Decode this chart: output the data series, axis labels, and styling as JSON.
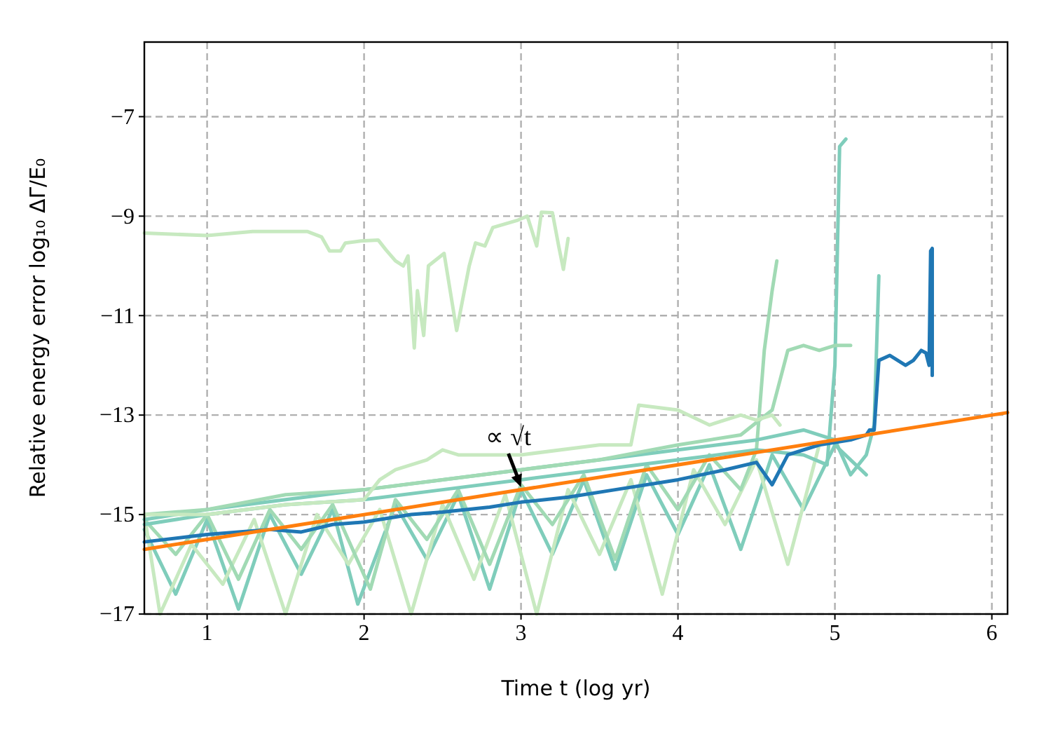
{
  "chart_data": {
    "type": "line",
    "xlabel": "Time t (log yr)",
    "ylabel": "Relative energy error log₁₀ ΔΓ/E₀",
    "xlim": [
      0.6,
      6.1
    ],
    "ylim": [
      -17,
      -5.5
    ],
    "xticks": [
      1,
      2,
      3,
      4,
      5,
      6
    ],
    "yticks": [
      {
        "value": -17,
        "label": "−17"
      },
      {
        "value": -15,
        "label": "−15"
      },
      {
        "value": -13,
        "label": "−13"
      },
      {
        "value": -11,
        "label": "−11"
      },
      {
        "value": -9,
        "label": "−9"
      },
      {
        "value": -7,
        "label": "−7"
      }
    ],
    "grid": true,
    "line_style": "solid",
    "marker": "none",
    "annotations": [
      {
        "text": "∝ √t",
        "x": 3.0,
        "y": -14.45
      }
    ],
    "series": [
      {
        "color": "#c7e9c0",
        "x": [
          0.6,
          1.0,
          1.29,
          1.64,
          1.73,
          1.78,
          1.85,
          1.88,
          1.98,
          2.09,
          2.14,
          2.2,
          2.25,
          2.28,
          2.32,
          2.34,
          2.38,
          2.41,
          2.51,
          2.59,
          2.67,
          2.71,
          2.77,
          2.82,
          2.98,
          3.04,
          3.1,
          3.13,
          3.2,
          3.24,
          3.27,
          3.3
        ],
        "values": [
          -9.34,
          -9.39,
          -9.31,
          -9.31,
          -9.42,
          -9.7,
          -9.7,
          -9.54,
          -9.5,
          -9.48,
          -9.68,
          -9.9,
          -10.0,
          -9.8,
          -11.65,
          -10.5,
          -11.4,
          -10.0,
          -9.75,
          -11.3,
          -10.0,
          -9.54,
          -9.6,
          -9.23,
          -9.08,
          -9.0,
          -9.6,
          -8.92,
          -8.93,
          -9.6,
          -10.07,
          -9.45
        ]
      },
      {
        "color": "#7fcdbb",
        "x": [
          0.6,
          0.8,
          1.0,
          1.2,
          1.4,
          1.6,
          1.8,
          1.96,
          2.2,
          2.4,
          2.6,
          2.8,
          3.0,
          3.2,
          3.4,
          3.6,
          3.8,
          4.0,
          4.2,
          4.4,
          4.6,
          4.8,
          5.0,
          5.2
        ],
        "values": [
          -15.3,
          -16.6,
          -15.1,
          -16.9,
          -15.0,
          -16.2,
          -14.9,
          -16.8,
          -14.8,
          -15.9,
          -14.6,
          -16.5,
          -14.5,
          -15.8,
          -14.3,
          -16.1,
          -14.2,
          -15.4,
          -14.0,
          -15.7,
          -13.8,
          -14.9,
          -13.6,
          -14.2
        ]
      },
      {
        "color": "#c7e9c0",
        "x": [
          0.6,
          0.7,
          0.9,
          1.1,
          1.3,
          1.5,
          1.7,
          1.9,
          2.1,
          2.3,
          2.5,
          2.7,
          2.9,
          3.1,
          3.3,
          3.5,
          3.7,
          3.9,
          4.1,
          4.3,
          4.5,
          4.7,
          4.9
        ],
        "values": [
          -15.0,
          -17.0,
          -15.6,
          -16.4,
          -15.1,
          -17.0,
          -15.0,
          -16.0,
          -14.9,
          -17.0,
          -14.8,
          -16.3,
          -14.6,
          -17.0,
          -14.5,
          -15.8,
          -14.3,
          -16.6,
          -14.1,
          -15.2,
          -13.9,
          -16.0,
          -13.6
        ]
      },
      {
        "color": "#a1dab4",
        "x": [
          0.6,
          0.8,
          1.0,
          1.2,
          1.4,
          1.6,
          1.8,
          2.04,
          2.2,
          2.4,
          2.6,
          2.8,
          3.0,
          3.2,
          3.4,
          3.6,
          3.8,
          4.0,
          4.2,
          4.4,
          4.5,
          4.55,
          4.6,
          4.63
        ],
        "values": [
          -15.1,
          -15.8,
          -15.0,
          -16.3,
          -14.9,
          -15.7,
          -14.8,
          -16.5,
          -14.7,
          -15.5,
          -14.5,
          -16.0,
          -14.4,
          -15.2,
          -14.2,
          -15.9,
          -14.0,
          -14.9,
          -13.8,
          -14.5,
          -13.7,
          -11.7,
          -10.5,
          -9.9
        ]
      },
      {
        "color": "#7fcdbb",
        "x": [
          0.6,
          1.0,
          1.5,
          2.0,
          2.5,
          3.0,
          3.5,
          4.0,
          4.5,
          4.8,
          4.95,
          5.0,
          5.03,
          5.07
        ],
        "values": [
          -15.2,
          -15.0,
          -14.8,
          -14.7,
          -14.5,
          -14.3,
          -14.1,
          -13.9,
          -13.7,
          -13.8,
          -14.0,
          -12.0,
          -7.6,
          -7.45
        ]
      },
      {
        "color": "#7fcdbb",
        "x": [
          0.6,
          1.0,
          1.5,
          2.0,
          2.5,
          3.0,
          3.5,
          4.0,
          4.5,
          4.8,
          5.0,
          5.1,
          5.2,
          5.25,
          5.28
        ],
        "values": [
          -15.1,
          -14.9,
          -14.7,
          -14.5,
          -14.3,
          -14.1,
          -13.9,
          -13.7,
          -13.5,
          -13.3,
          -13.5,
          -14.2,
          -13.8,
          -13.2,
          -10.2
        ]
      },
      {
        "color": "#a1dab4",
        "x": [
          0.6,
          1.0,
          1.5,
          2.0,
          2.5,
          3.0,
          3.5,
          4.0,
          4.4,
          4.6,
          4.7,
          4.8,
          4.9,
          5.0,
          5.1
        ],
        "values": [
          -15.0,
          -14.9,
          -14.6,
          -14.5,
          -14.3,
          -14.1,
          -13.9,
          -13.6,
          -13.4,
          -12.9,
          -11.7,
          -11.6,
          -11.7,
          -11.6,
          -11.6
        ]
      },
      {
        "color": "#c7e9c0",
        "x": [
          0.6,
          1.0,
          1.5,
          2.0,
          2.1,
          2.2,
          2.4,
          2.5,
          2.6,
          3.0,
          3.5,
          3.7,
          3.75,
          4.0,
          4.2,
          4.4,
          4.5,
          4.6,
          4.65
        ],
        "values": [
          -15.0,
          -15.0,
          -14.8,
          -14.7,
          -14.3,
          -14.1,
          -13.9,
          -13.7,
          -13.8,
          -13.8,
          -13.6,
          -13.6,
          -12.8,
          -12.9,
          -13.2,
          -13.0,
          -13.1,
          -13.0,
          -13.2
        ]
      },
      {
        "color": "#1f77b4",
        "x": [
          0.6,
          1.0,
          1.4,
          1.6,
          1.8,
          2.0,
          2.3,
          2.5,
          2.8,
          3.0,
          3.3,
          3.6,
          4.0,
          4.3,
          4.5,
          4.6,
          4.7,
          4.9,
          5.1,
          5.2,
          5.22,
          5.25,
          5.28,
          5.35,
          5.45,
          5.5,
          5.55,
          5.58,
          5.6,
          5.61,
          5.62,
          5.62
        ],
        "values": [
          -15.55,
          -15.4,
          -15.3,
          -15.35,
          -15.2,
          -15.15,
          -15.0,
          -14.95,
          -14.85,
          -14.75,
          -14.65,
          -14.5,
          -14.3,
          -14.1,
          -13.95,
          -14.4,
          -13.8,
          -13.6,
          -13.5,
          -13.4,
          -13.3,
          -13.3,
          -11.9,
          -11.8,
          -12.0,
          -11.9,
          -11.7,
          -11.75,
          -12.0,
          -9.7,
          -9.65,
          -12.2
        ]
      },
      {
        "color": "#ff7f0e",
        "x": [
          0.6,
          6.1
        ],
        "values": [
          -15.7,
          -12.95
        ]
      }
    ]
  }
}
